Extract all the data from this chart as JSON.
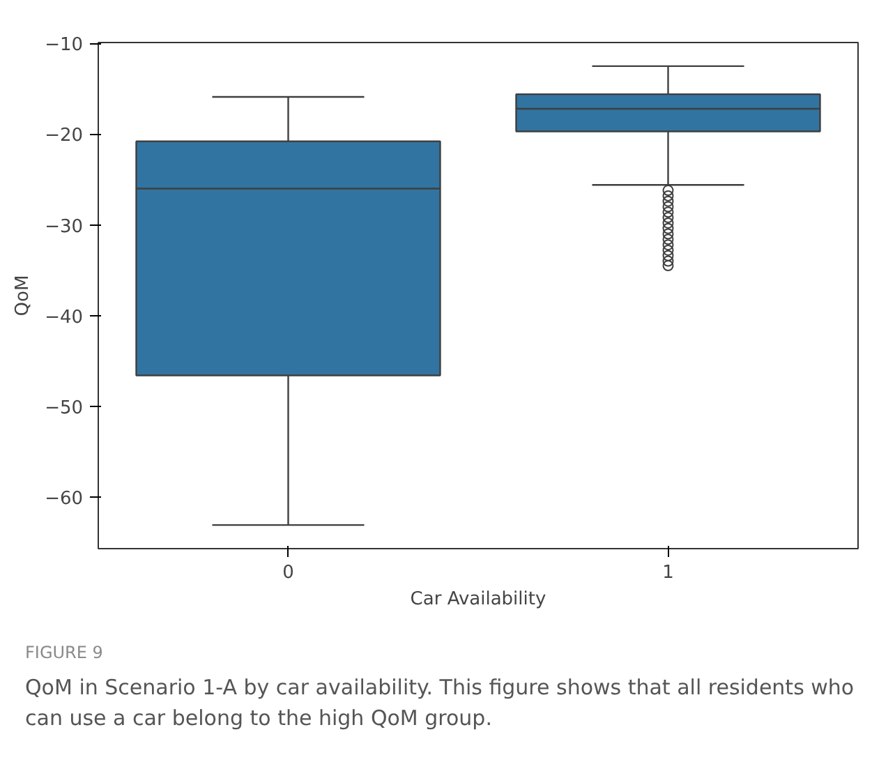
{
  "chart_data": {
    "type": "box",
    "xlabel": "Car Availability",
    "ylabel": "QoM",
    "categories": [
      "0",
      "1"
    ],
    "boxes": [
      {
        "low": -63.1,
        "q1": -46.6,
        "median": -26.0,
        "q3": -20.8,
        "high": -15.9
      },
      {
        "low": -25.6,
        "q1": -19.7,
        "median": -17.2,
        "q3": -15.6,
        "high": -12.5,
        "outliers": [
          -26.2,
          -26.8,
          -27.4,
          -28.0,
          -28.6,
          -29.2,
          -29.8,
          -30.4,
          -31.0,
          -31.6,
          -32.2,
          -32.8,
          -33.4,
          -34.0,
          -34.5
        ]
      }
    ],
    "color": "#3274a1",
    "ylim": [
      -65.7,
      -9.9
    ],
    "yticks": [
      -10,
      -20,
      -30,
      -40,
      -50,
      -60
    ],
    "grid": false,
    "annotations": [
      "FIGURE 9",
      "QoM in Scenario 1-A by car availability. This figure shows that all residents who can use a car belong to the high QoM group."
    ]
  }
}
